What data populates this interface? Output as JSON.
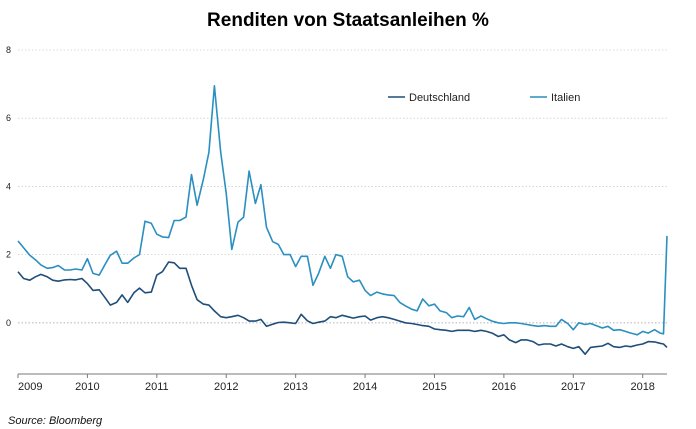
{
  "chart_data": {
    "type": "line",
    "title": "Renditen von Staatsanleihen  %",
    "source": "Source: Bloomberg",
    "ylim": [
      -1.5,
      8
    ],
    "yticks": [
      "8",
      "6",
      "4",
      "2",
      "0"
    ],
    "xlim": [
      2009.0,
      2018.35
    ],
    "xticks": [
      "2009",
      "2010",
      "2011",
      "2012",
      "2013",
      "2014",
      "2015",
      "2016",
      "2017",
      "2018"
    ],
    "grid": true,
    "legend_position": "top-right",
    "series": [
      {
        "name": "Deutschland",
        "color": "#1f4e79",
        "points": [
          [
            2009.0,
            1.5
          ],
          [
            2009.08,
            1.3
          ],
          [
            2009.17,
            1.25
          ],
          [
            2009.25,
            1.35
          ],
          [
            2009.33,
            1.42
          ],
          [
            2009.42,
            1.35
          ],
          [
            2009.5,
            1.25
          ],
          [
            2009.58,
            1.22
          ],
          [
            2009.67,
            1.26
          ],
          [
            2009.75,
            1.27
          ],
          [
            2009.83,
            1.26
          ],
          [
            2009.92,
            1.3
          ],
          [
            2010.0,
            1.15
          ],
          [
            2010.08,
            0.95
          ],
          [
            2010.17,
            0.97
          ],
          [
            2010.25,
            0.75
          ],
          [
            2010.33,
            0.52
          ],
          [
            2010.42,
            0.6
          ],
          [
            2010.5,
            0.82
          ],
          [
            2010.58,
            0.6
          ],
          [
            2010.67,
            0.88
          ],
          [
            2010.75,
            1.02
          ],
          [
            2010.83,
            0.88
          ],
          [
            2010.92,
            0.9
          ],
          [
            2011.0,
            1.4
          ],
          [
            2011.08,
            1.5
          ],
          [
            2011.17,
            1.78
          ],
          [
            2011.25,
            1.76
          ],
          [
            2011.33,
            1.6
          ],
          [
            2011.42,
            1.6
          ],
          [
            2011.5,
            1.1
          ],
          [
            2011.58,
            0.68
          ],
          [
            2011.67,
            0.55
          ],
          [
            2011.75,
            0.52
          ],
          [
            2011.83,
            0.35
          ],
          [
            2011.92,
            0.18
          ],
          [
            2012.0,
            0.15
          ],
          [
            2012.08,
            0.18
          ],
          [
            2012.17,
            0.22
          ],
          [
            2012.25,
            0.15
          ],
          [
            2012.33,
            0.05
          ],
          [
            2012.42,
            0.05
          ],
          [
            2012.5,
            0.1
          ],
          [
            2012.58,
            -0.1
          ],
          [
            2012.67,
            -0.04
          ],
          [
            2012.75,
            0.01
          ],
          [
            2012.83,
            0.02
          ],
          [
            2012.92,
            0.0
          ],
          [
            2013.0,
            -0.02
          ],
          [
            2013.08,
            0.25
          ],
          [
            2013.17,
            0.06
          ],
          [
            2013.25,
            -0.02
          ],
          [
            2013.33,
            0.02
          ],
          [
            2013.42,
            0.05
          ],
          [
            2013.5,
            0.18
          ],
          [
            2013.58,
            0.15
          ],
          [
            2013.67,
            0.22
          ],
          [
            2013.75,
            0.18
          ],
          [
            2013.83,
            0.14
          ],
          [
            2013.92,
            0.18
          ],
          [
            2014.0,
            0.2
          ],
          [
            2014.08,
            0.08
          ],
          [
            2014.17,
            0.15
          ],
          [
            2014.25,
            0.18
          ],
          [
            2014.33,
            0.15
          ],
          [
            2014.42,
            0.1
          ],
          [
            2014.5,
            0.05
          ],
          [
            2014.58,
            0.0
          ],
          [
            2014.67,
            -0.02
          ],
          [
            2014.75,
            -0.05
          ],
          [
            2014.83,
            -0.08
          ],
          [
            2014.92,
            -0.1
          ],
          [
            2015.0,
            -0.18
          ],
          [
            2015.08,
            -0.2
          ],
          [
            2015.17,
            -0.22
          ],
          [
            2015.25,
            -0.25
          ],
          [
            2015.33,
            -0.22
          ],
          [
            2015.42,
            -0.22
          ],
          [
            2015.5,
            -0.22
          ],
          [
            2015.58,
            -0.25
          ],
          [
            2015.67,
            -0.22
          ],
          [
            2015.75,
            -0.25
          ],
          [
            2015.83,
            -0.3
          ],
          [
            2015.92,
            -0.4
          ],
          [
            2016.0,
            -0.35
          ],
          [
            2016.08,
            -0.5
          ],
          [
            2016.17,
            -0.58
          ],
          [
            2016.25,
            -0.5
          ],
          [
            2016.33,
            -0.5
          ],
          [
            2016.42,
            -0.55
          ],
          [
            2016.5,
            -0.65
          ],
          [
            2016.58,
            -0.62
          ],
          [
            2016.67,
            -0.62
          ],
          [
            2016.75,
            -0.68
          ],
          [
            2016.83,
            -0.62
          ],
          [
            2016.92,
            -0.7
          ],
          [
            2017.0,
            -0.75
          ],
          [
            2017.08,
            -0.7
          ],
          [
            2017.17,
            -0.92
          ],
          [
            2017.25,
            -0.72
          ],
          [
            2017.33,
            -0.7
          ],
          [
            2017.42,
            -0.68
          ],
          [
            2017.5,
            -0.6
          ],
          [
            2017.58,
            -0.7
          ],
          [
            2017.67,
            -0.72
          ],
          [
            2017.75,
            -0.68
          ],
          [
            2017.83,
            -0.7
          ],
          [
            2017.92,
            -0.65
          ],
          [
            2018.0,
            -0.62
          ],
          [
            2018.08,
            -0.55
          ],
          [
            2018.17,
            -0.56
          ],
          [
            2018.25,
            -0.6
          ],
          [
            2018.3,
            -0.62
          ],
          [
            2018.35,
            -0.72
          ]
        ]
      },
      {
        "name": "Italien",
        "color": "#2a8fc1",
        "points": [
          [
            2009.0,
            2.4
          ],
          [
            2009.08,
            2.2
          ],
          [
            2009.17,
            1.98
          ],
          [
            2009.25,
            1.85
          ],
          [
            2009.33,
            1.7
          ],
          [
            2009.42,
            1.6
          ],
          [
            2009.5,
            1.62
          ],
          [
            2009.58,
            1.68
          ],
          [
            2009.67,
            1.55
          ],
          [
            2009.75,
            1.55
          ],
          [
            2009.83,
            1.58
          ],
          [
            2009.92,
            1.55
          ],
          [
            2010.0,
            1.88
          ],
          [
            2010.08,
            1.45
          ],
          [
            2010.17,
            1.4
          ],
          [
            2010.25,
            1.7
          ],
          [
            2010.33,
            1.98
          ],
          [
            2010.42,
            2.1
          ],
          [
            2010.5,
            1.75
          ],
          [
            2010.58,
            1.75
          ],
          [
            2010.67,
            1.9
          ],
          [
            2010.75,
            2.0
          ],
          [
            2010.83,
            2.98
          ],
          [
            2010.92,
            2.92
          ],
          [
            2011.0,
            2.6
          ],
          [
            2011.08,
            2.52
          ],
          [
            2011.17,
            2.5
          ],
          [
            2011.25,
            3.0
          ],
          [
            2011.33,
            3.0
          ],
          [
            2011.42,
            3.1
          ],
          [
            2011.5,
            4.35
          ],
          [
            2011.58,
            3.45
          ],
          [
            2011.67,
            4.2
          ],
          [
            2011.75,
            5.0
          ],
          [
            2011.83,
            6.95
          ],
          [
            2011.92,
            5.0
          ],
          [
            2012.0,
            3.8
          ],
          [
            2012.08,
            2.15
          ],
          [
            2012.17,
            2.95
          ],
          [
            2012.25,
            3.1
          ],
          [
            2012.33,
            4.45
          ],
          [
            2012.42,
            3.5
          ],
          [
            2012.5,
            4.05
          ],
          [
            2012.58,
            2.8
          ],
          [
            2012.67,
            2.38
          ],
          [
            2012.75,
            2.3
          ],
          [
            2012.83,
            2.0
          ],
          [
            2012.92,
            2.0
          ],
          [
            2013.0,
            1.65
          ],
          [
            2013.08,
            1.95
          ],
          [
            2013.17,
            1.95
          ],
          [
            2013.25,
            1.1
          ],
          [
            2013.33,
            1.45
          ],
          [
            2013.42,
            1.95
          ],
          [
            2013.5,
            1.6
          ],
          [
            2013.58,
            2.0
          ],
          [
            2013.67,
            1.95
          ],
          [
            2013.75,
            1.35
          ],
          [
            2013.83,
            1.2
          ],
          [
            2013.92,
            1.25
          ],
          [
            2014.0,
            0.95
          ],
          [
            2014.08,
            0.8
          ],
          [
            2014.17,
            0.9
          ],
          [
            2014.25,
            0.85
          ],
          [
            2014.33,
            0.82
          ],
          [
            2014.42,
            0.8
          ],
          [
            2014.5,
            0.6
          ],
          [
            2014.58,
            0.5
          ],
          [
            2014.67,
            0.4
          ],
          [
            2014.75,
            0.35
          ],
          [
            2014.83,
            0.7
          ],
          [
            2014.92,
            0.5
          ],
          [
            2015.0,
            0.55
          ],
          [
            2015.08,
            0.35
          ],
          [
            2015.17,
            0.3
          ],
          [
            2015.25,
            0.15
          ],
          [
            2015.33,
            0.2
          ],
          [
            2015.42,
            0.18
          ],
          [
            2015.5,
            0.45
          ],
          [
            2015.58,
            0.1
          ],
          [
            2015.67,
            0.2
          ],
          [
            2015.75,
            0.12
          ],
          [
            2015.83,
            0.05
          ],
          [
            2015.92,
            0.0
          ],
          [
            2016.0,
            -0.02
          ],
          [
            2016.08,
            0.0
          ],
          [
            2016.17,
            0.0
          ],
          [
            2016.25,
            -0.02
          ],
          [
            2016.33,
            -0.05
          ],
          [
            2016.42,
            -0.08
          ],
          [
            2016.5,
            -0.1
          ],
          [
            2016.58,
            -0.08
          ],
          [
            2016.67,
            -0.1
          ],
          [
            2016.75,
            -0.1
          ],
          [
            2016.83,
            0.1
          ],
          [
            2016.92,
            -0.02
          ],
          [
            2017.0,
            -0.2
          ],
          [
            2017.08,
            0.0
          ],
          [
            2017.17,
            -0.05
          ],
          [
            2017.25,
            -0.02
          ],
          [
            2017.33,
            -0.08
          ],
          [
            2017.42,
            -0.15
          ],
          [
            2017.5,
            -0.1
          ],
          [
            2017.58,
            -0.22
          ],
          [
            2017.67,
            -0.2
          ],
          [
            2017.75,
            -0.25
          ],
          [
            2017.83,
            -0.3
          ],
          [
            2017.92,
            -0.35
          ],
          [
            2018.0,
            -0.25
          ],
          [
            2018.08,
            -0.3
          ],
          [
            2018.17,
            -0.2
          ],
          [
            2018.25,
            -0.3
          ],
          [
            2018.3,
            -0.32
          ],
          [
            2018.35,
            2.55
          ]
        ]
      }
    ]
  }
}
